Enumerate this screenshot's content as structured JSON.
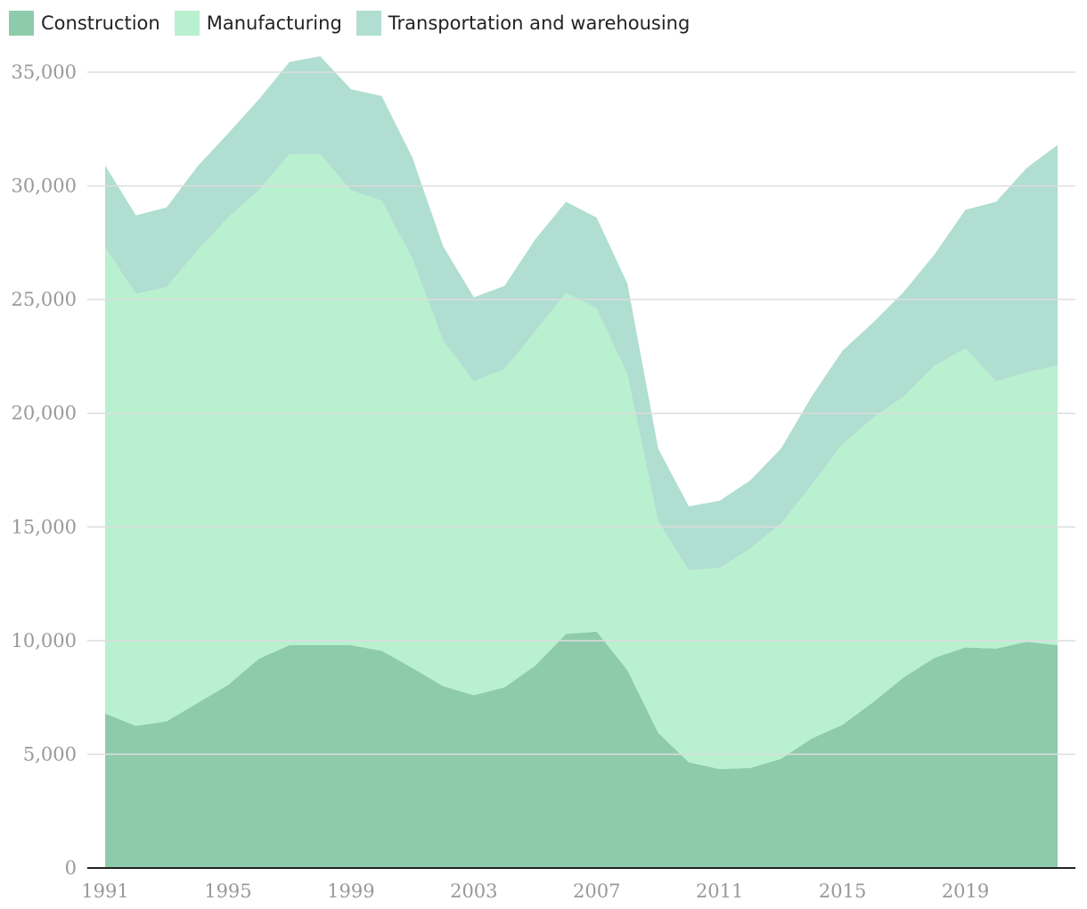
{
  "chart_data": {
    "type": "area",
    "stacked": true,
    "title": "",
    "xlabel": "",
    "ylabel": "",
    "ylim": [
      0,
      35000
    ],
    "legend_position": "top-left",
    "x": [
      1991,
      1992,
      1993,
      1994,
      1995,
      1996,
      1997,
      1998,
      1999,
      2000,
      2001,
      2002,
      2003,
      2004,
      2005,
      2006,
      2007,
      2008,
      2009,
      2010,
      2011,
      2012,
      2013,
      2014,
      2015,
      2016,
      2017,
      2018,
      2019,
      2020,
      2021,
      2022
    ],
    "x_ticks": [
      "1991",
      "1995",
      "1999",
      "2003",
      "2007",
      "2011",
      "2015",
      "2019"
    ],
    "y_ticks": [
      "0",
      "5,000",
      "10,000",
      "15,000",
      "20,000",
      "25,000",
      "30,000",
      "35,000"
    ],
    "y_tick_values": [
      0,
      5000,
      10000,
      15000,
      20000,
      25000,
      30000,
      35000
    ],
    "series": [
      {
        "name": "Construction",
        "color": "#8ecbab",
        "values": [
          6800,
          6250,
          6450,
          7250,
          8050,
          9200,
          9800,
          9800,
          9800,
          9550,
          8800,
          8000,
          7600,
          7950,
          8900,
          10300,
          10400,
          8700,
          5950,
          4650,
          4350,
          4400,
          4800,
          5700,
          6300,
          7300,
          8400,
          9250,
          9700,
          9650,
          9950,
          9800
        ]
      },
      {
        "name": "Manufacturing",
        "color": "#b9f0cf",
        "values": [
          20500,
          19000,
          19100,
          19900,
          20550,
          20600,
          21600,
          21600,
          20000,
          19800,
          18000,
          15200,
          13800,
          14000,
          14700,
          15000,
          14200,
          13000,
          9300,
          8450,
          8850,
          9650,
          10350,
          11150,
          12350,
          12500,
          12350,
          12850,
          13150,
          11750,
          11850,
          12300
        ]
      },
      {
        "name": "Transportation and warehousing",
        "color": "#b0ded1",
        "values": [
          3600,
          3450,
          3500,
          3700,
          3700,
          4000,
          4050,
          4300,
          4450,
          4600,
          4450,
          4150,
          3700,
          3650,
          4050,
          4000,
          4000,
          4000,
          3200,
          2800,
          2950,
          3000,
          3300,
          3900,
          4100,
          4200,
          4600,
          4900,
          6100,
          7900,
          9000,
          9700
        ]
      }
    ]
  }
}
